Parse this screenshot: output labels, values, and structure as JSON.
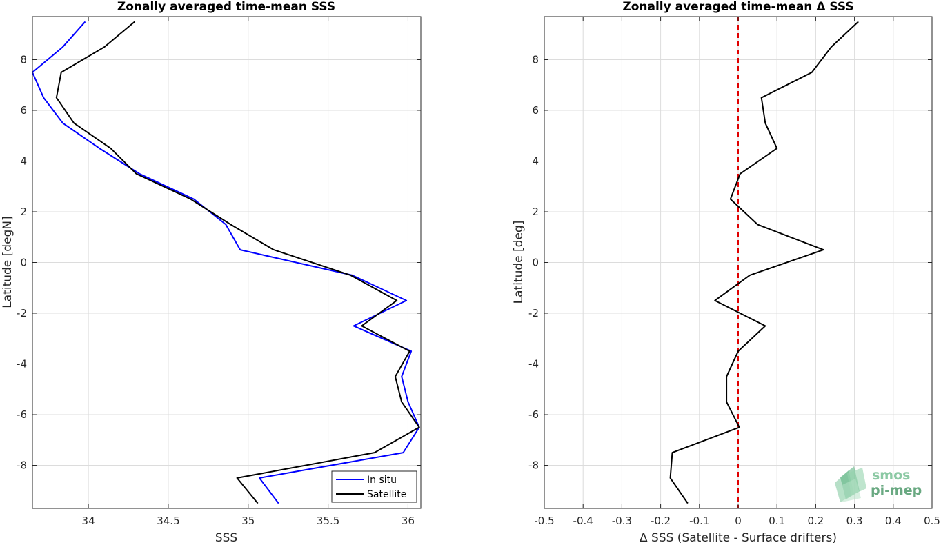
{
  "chart_data": [
    {
      "type": "line",
      "title": "Zonally averaged time-mean SSS",
      "xlabel": "SSS",
      "ylabel": "Latitude [degN]",
      "xlim": [
        33.65,
        36.08
      ],
      "ylim": [
        -9.7,
        9.7
      ],
      "xticks": [
        34,
        34.5,
        35,
        35.5,
        36
      ],
      "xtick_labels": [
        "34",
        "34.5",
        "35",
        "35.5",
        "36"
      ],
      "yticks": [
        -8,
        -6,
        -4,
        -2,
        0,
        2,
        4,
        6,
        8
      ],
      "ytick_labels": [
        "-8",
        "-6",
        "-4",
        "-2",
        "0",
        "2",
        "4",
        "6",
        "8"
      ],
      "grid": true,
      "legend_position": "bottom-right",
      "y": [
        9.5,
        8.5,
        7.5,
        6.5,
        5.5,
        4.5,
        3.5,
        2.5,
        1.5,
        0.5,
        -0.5,
        -1.5,
        -2.5,
        -3.5,
        -4.5,
        -5.5,
        -6.5,
        -7.5,
        -8.5,
        -9.5
      ],
      "series": [
        {
          "name": "In situ",
          "color": "#0000ff",
          "x": [
            33.98,
            33.84,
            33.65,
            33.72,
            33.84,
            34.07,
            34.32,
            34.66,
            34.86,
            34.95,
            35.65,
            35.99,
            35.66,
            36.02,
            35.96,
            36.0,
            36.07,
            35.97,
            35.07,
            35.19
          ]
        },
        {
          "name": "Satellite",
          "color": "#000000",
          "x": [
            34.29,
            34.1,
            33.83,
            33.8,
            33.91,
            34.14,
            34.3,
            34.64,
            34.89,
            35.16,
            35.64,
            35.93,
            35.71,
            36.01,
            35.92,
            35.96,
            36.07,
            35.79,
            34.93,
            35.06
          ]
        }
      ]
    },
    {
      "type": "line",
      "title": "Zonally averaged time-mean Δ SSS",
      "xlabel": "Δ SSS (Satellite - Surface drifters)",
      "ylabel": "Latitude [deg]",
      "xlim": [
        -0.5,
        0.5
      ],
      "ylim": [
        -9.7,
        9.7
      ],
      "xticks": [
        -0.5,
        -0.4,
        -0.3,
        -0.2,
        -0.1,
        0,
        0.1,
        0.2,
        0.3,
        0.4,
        0.5
      ],
      "xtick_labels": [
        "-0.5",
        "-0.4",
        "-0.3",
        "-0.2",
        "-0.1",
        "0",
        "0.1",
        "0.2",
        "0.3",
        "0.4",
        "0.5"
      ],
      "yticks": [
        -8,
        -6,
        -4,
        -2,
        0,
        2,
        4,
        6,
        8
      ],
      "ytick_labels": [
        "-8",
        "-6",
        "-4",
        "-2",
        "0",
        "2",
        "4",
        "6",
        "8"
      ],
      "grid": true,
      "reference_line": {
        "x": 0,
        "color": "#e00000",
        "style": "dashed"
      },
      "y": [
        9.5,
        8.5,
        7.5,
        6.5,
        5.5,
        4.5,
        3.5,
        2.5,
        1.5,
        0.5,
        -0.5,
        -1.5,
        -2.5,
        -3.5,
        -4.5,
        -5.5,
        -6.5,
        -7.5,
        -8.5,
        -9.5
      ],
      "series": [
        {
          "color": "#000000",
          "x": [
            0.31,
            0.24,
            0.19,
            0.06,
            0.07,
            0.1,
            0.005,
            -0.02,
            0.05,
            0.22,
            0.03,
            -0.06,
            0.07,
            0.0,
            -0.03,
            -0.03,
            0.003,
            -0.17,
            -0.175,
            -0.13
          ]
        }
      ]
    }
  ],
  "logo": {
    "line1": "smos",
    "line2": "pi-mep"
  }
}
